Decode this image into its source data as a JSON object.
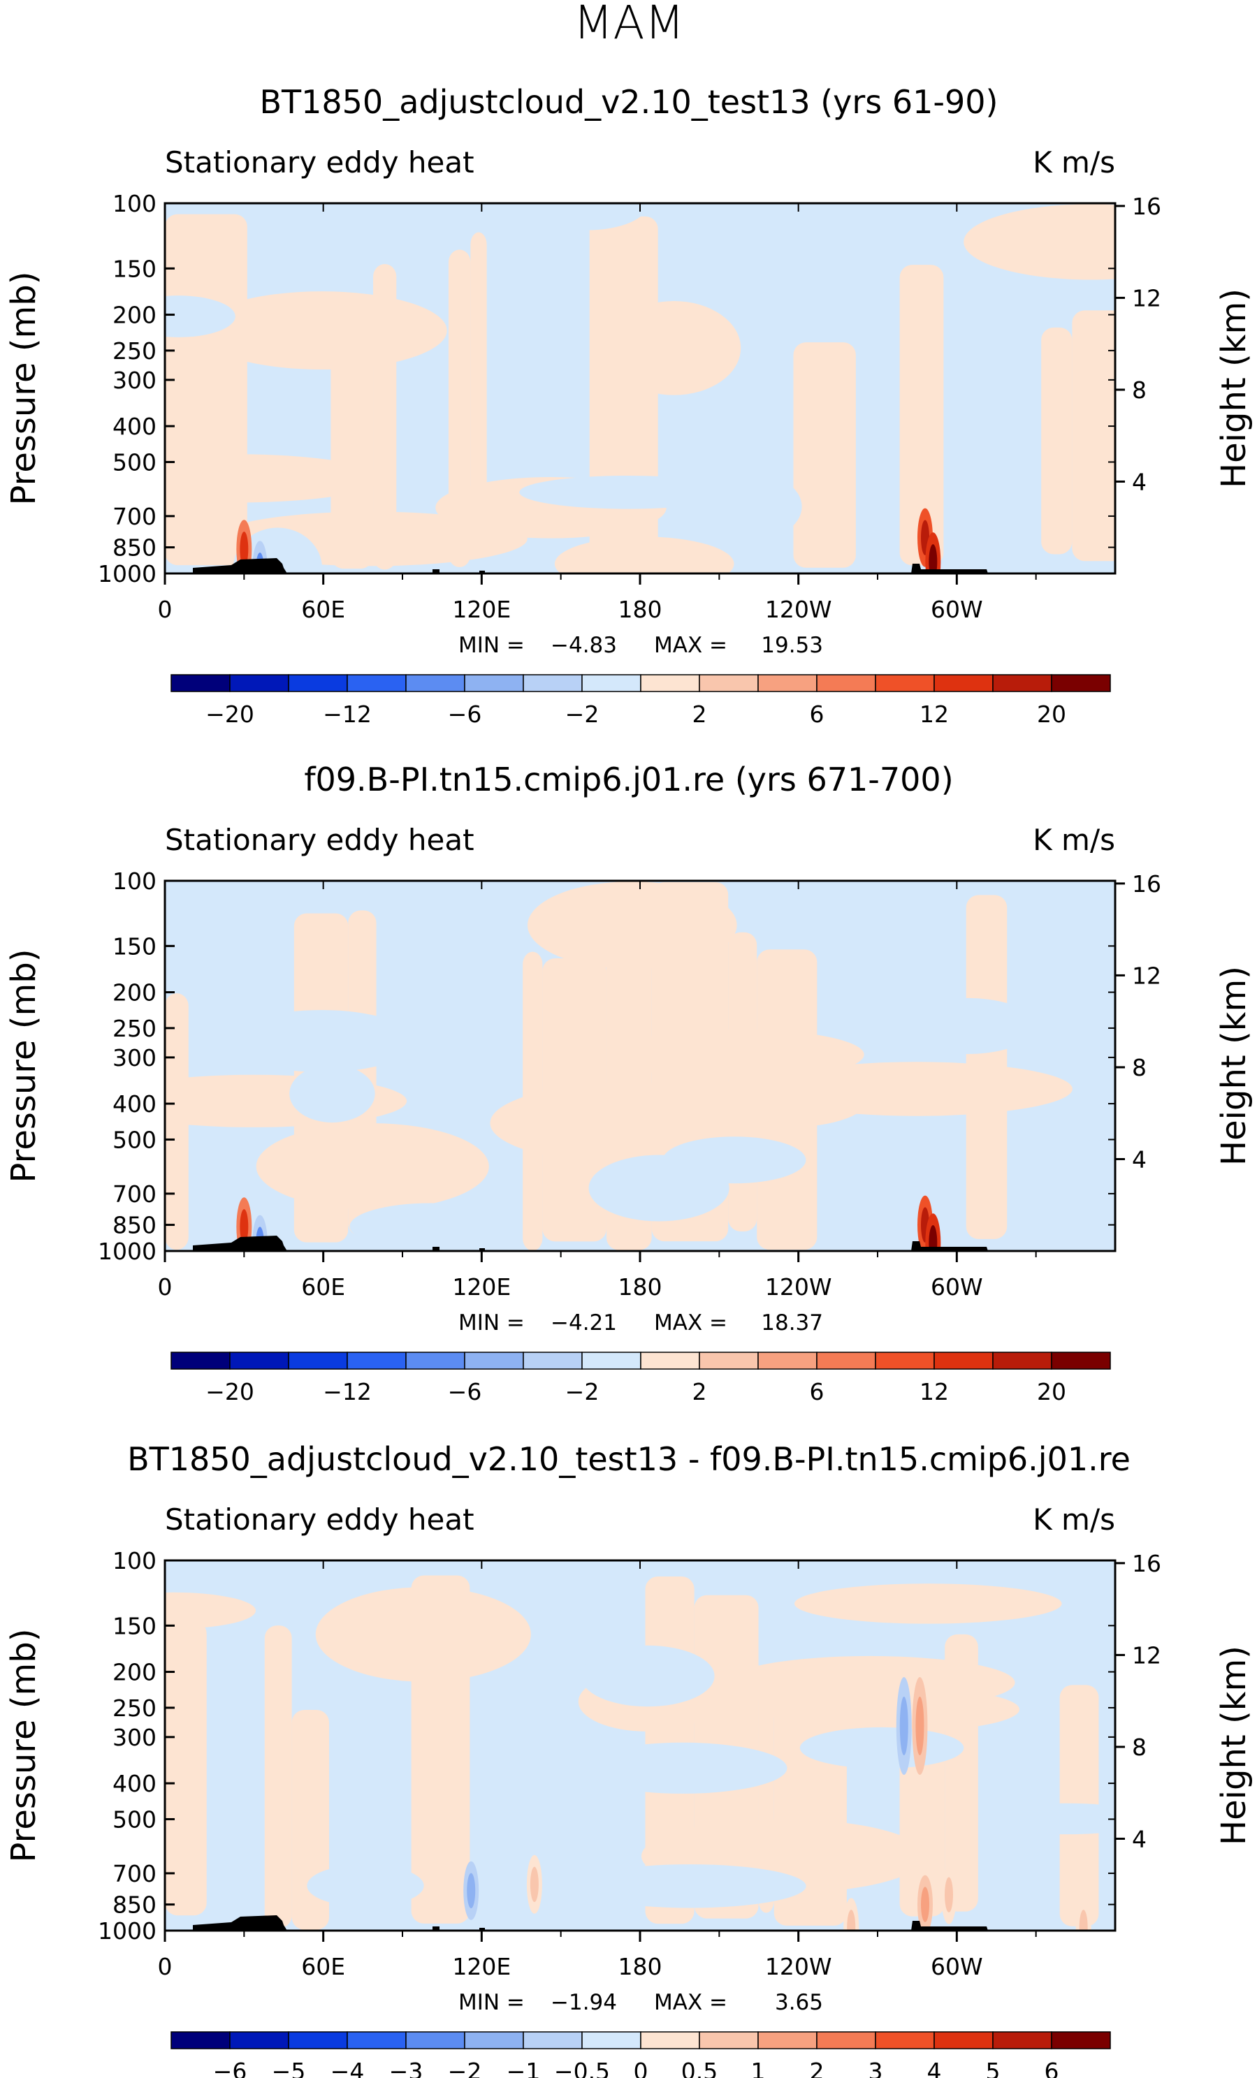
{
  "page_title": "MAM",
  "colors": {
    "field_neg": "#d4e8fb",
    "field_pos": "#fde4d2",
    "topography": "#000000"
  },
  "chart_data": [
    {
      "type": "heatmap",
      "title": "BT1850_adjustcloud_v2.10_test13 (yrs 61-90)",
      "left_label": "Stationary eddy heat",
      "units": "K m/s",
      "ylabel": "Pressure (mb)",
      "ylabel_right": "Height (km)",
      "y_ticks": [
        "100",
        "150",
        "200",
        "250",
        "300",
        "400",
        "500",
        "700",
        "850",
        "1000"
      ],
      "y_right_ticks": [
        "16",
        "12",
        "8",
        "4"
      ],
      "x_ticks": [
        "0",
        "60E",
        "120E",
        "180",
        "120W",
        "60W"
      ],
      "min_label": "MIN =",
      "min": "−4.83",
      "max_label": "MAX =",
      "max": "19.53",
      "colorbar_labels": [
        "−20",
        "−12",
        "−6",
        "−2",
        "2",
        "6",
        "12",
        "20"
      ],
      "colorbar_colors": [
        "#00007a",
        "#0018b8",
        "#0a3be0",
        "#2a62f2",
        "#5c8cf2",
        "#8eb2f2",
        "#b8d1f6",
        "#d4e8fb",
        "#fde4d2",
        "#f9c6ad",
        "#f7a180",
        "#f47b55",
        "#ef5128",
        "#de3210",
        "#b81c0a",
        "#7a0000"
      ],
      "features": [
        {
          "lon": 30,
          "p": 860,
          "v": 12
        },
        {
          "lon": 36,
          "p": 980,
          "v": -6
        },
        {
          "lon": 288,
          "p": 800,
          "v": 14
        },
        {
          "lon": 291,
          "p": 930,
          "v": 18
        }
      ]
    },
    {
      "type": "heatmap",
      "title": "f09.B-PI.tn15.cmip6.j01.re (yrs 671-700)",
      "left_label": "Stationary eddy heat",
      "units": "K m/s",
      "ylabel": "Pressure (mb)",
      "ylabel_right": "Height (km)",
      "y_ticks": [
        "100",
        "150",
        "200",
        "250",
        "300",
        "400",
        "500",
        "700",
        "850",
        "1000"
      ],
      "y_right_ticks": [
        "16",
        "12",
        "8",
        "4"
      ],
      "x_ticks": [
        "0",
        "60E",
        "120E",
        "180",
        "120W",
        "60W"
      ],
      "min_label": "MIN =",
      "min": "−4.21",
      "max_label": "MAX =",
      "max": "18.37",
      "colorbar_labels": [
        "−20",
        "−12",
        "−6",
        "−2",
        "2",
        "6",
        "12",
        "20"
      ],
      "colorbar_colors": [
        "#00007a",
        "#0018b8",
        "#0a3be0",
        "#2a62f2",
        "#5c8cf2",
        "#8eb2f2",
        "#b8d1f6",
        "#d4e8fb",
        "#fde4d2",
        "#f9c6ad",
        "#f7a180",
        "#f47b55",
        "#ef5128",
        "#de3210",
        "#b81c0a",
        "#7a0000"
      ],
      "features": [
        {
          "lon": 30,
          "p": 860,
          "v": 12
        },
        {
          "lon": 36,
          "p": 960,
          "v": -6
        },
        {
          "lon": 288,
          "p": 850,
          "v": 14
        },
        {
          "lon": 291,
          "p": 950,
          "v": 18
        }
      ]
    },
    {
      "type": "heatmap",
      "title": "BT1850_adjustcloud_v2.10_test13 - f09.B-PI.tn15.cmip6.j01.re",
      "left_label": "Stationary eddy heat",
      "units": "K m/s",
      "ylabel": "Pressure (mb)",
      "ylabel_right": "Height (km)",
      "y_ticks": [
        "100",
        "150",
        "200",
        "250",
        "300",
        "400",
        "500",
        "700",
        "850",
        "1000"
      ],
      "y_right_ticks": [
        "16",
        "12",
        "8",
        "4"
      ],
      "x_ticks": [
        "0",
        "60E",
        "120E",
        "180",
        "120W",
        "60W"
      ],
      "min_label": "MIN =",
      "min": "−1.94",
      "max_label": "MAX =",
      "max": "3.65",
      "colorbar_labels": [
        "−6",
        "−5",
        "−4",
        "−3",
        "−2",
        "−1",
        "−0.5",
        "0",
        "0.5",
        "1",
        "2",
        "3",
        "4",
        "5",
        "6"
      ],
      "colorbar_colors": [
        "#00007a",
        "#0018b8",
        "#0a3be0",
        "#2a62f2",
        "#5c8cf2",
        "#8eb2f2",
        "#b8d1f6",
        "#d4e8fb",
        "#fde4d2",
        "#f9c6ad",
        "#f7a180",
        "#f47b55",
        "#ef5128",
        "#de3210",
        "#b81c0a",
        "#7a0000"
      ],
      "features": [
        {
          "lon": 280,
          "p": 280,
          "v": -1.5
        },
        {
          "lon": 286,
          "p": 280,
          "v": 1.5
        },
        {
          "lon": 116,
          "p": 780,
          "v": -1.5
        },
        {
          "lon": 140,
          "p": 750,
          "v": 0.8
        },
        {
          "lon": 288,
          "p": 850,
          "v": 1.5
        },
        {
          "lon": 297,
          "p": 800,
          "v": 1.0
        },
        {
          "lon": 260,
          "p": 980,
          "v": 0.8
        },
        {
          "lon": 348,
          "p": 980,
          "v": 0.8
        }
      ]
    }
  ]
}
